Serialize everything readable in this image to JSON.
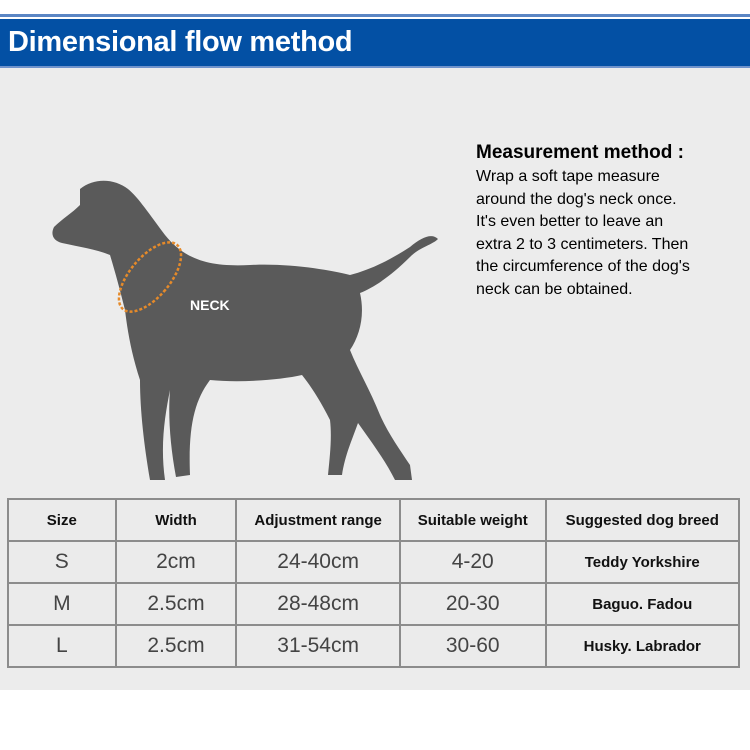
{
  "header": {
    "title": "Dimensional flow method"
  },
  "illustration": {
    "neck_label": "NECK",
    "colors": {
      "dog": "#5a5a5a",
      "tape": "#e58a2a"
    }
  },
  "method": {
    "title": "Measurement method :",
    "lines": [
      "Wrap a soft tape measure",
      "around the dog's neck once.",
      "It's even better to leave an",
      "extra 2 to 3 centimeters. Then",
      "the circumference of the dog's",
      "neck can be obtained."
    ]
  },
  "table": {
    "headers": [
      "Size",
      "Width",
      "Adjustment range",
      "Suitable weight",
      "Suggested dog breed"
    ],
    "rows": [
      [
        "S",
        "2cm",
        "24-40cm",
        "4-20",
        "Teddy Yorkshire"
      ],
      [
        "M",
        "2.5cm",
        "28-48cm",
        "20-30",
        "Baguo. Fadou"
      ],
      [
        "L",
        "2.5cm",
        "31-54cm",
        "30-60",
        "Husky. Labrador"
      ]
    ]
  }
}
